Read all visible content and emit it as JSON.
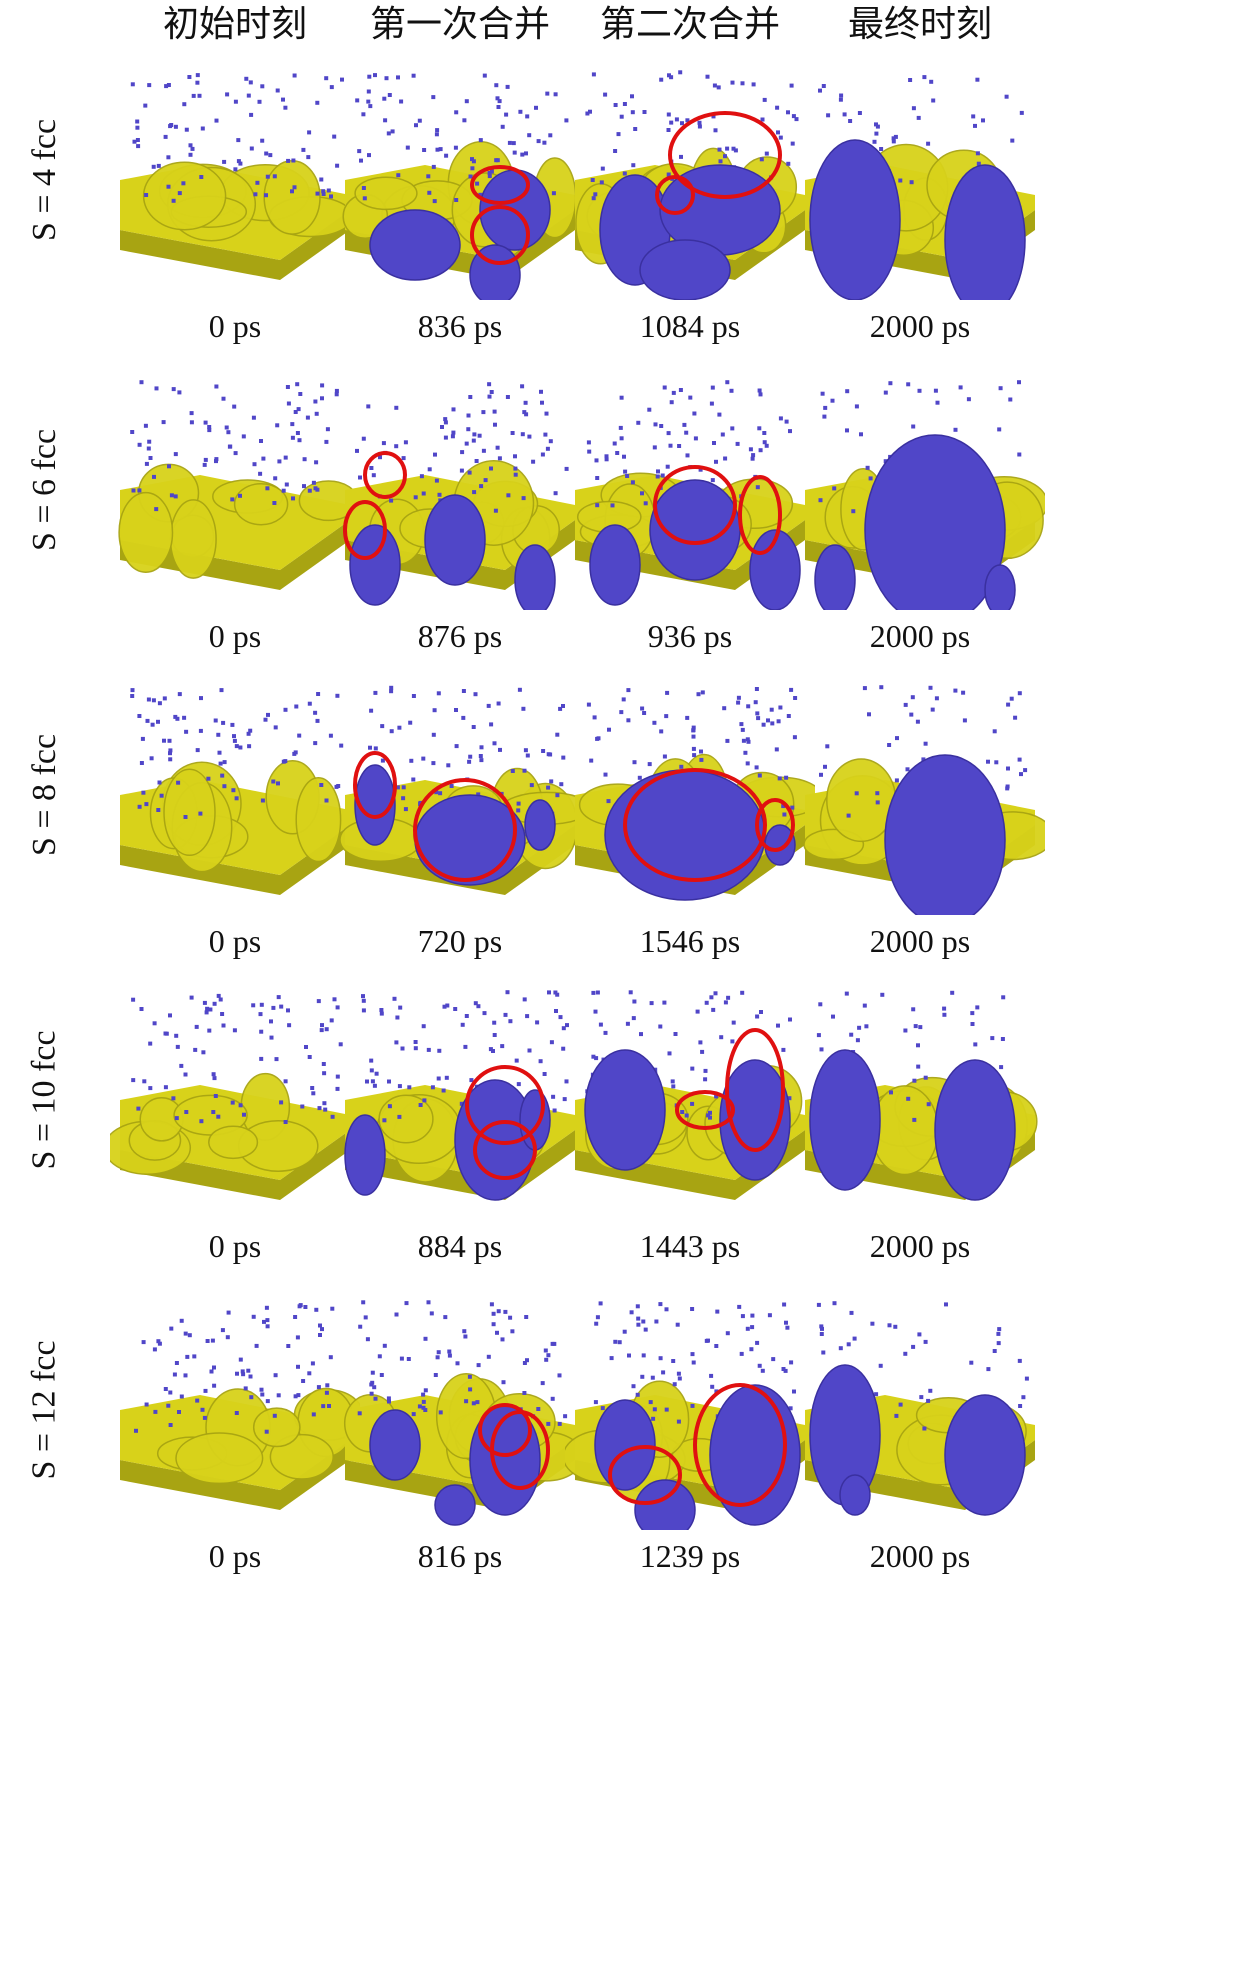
{
  "column_headers": [
    "初始时刻",
    "第一次合并",
    "第二次合并",
    "最终时刻"
  ],
  "rows": [
    {
      "label": "S = 4 fcc",
      "times": [
        "0 ps",
        "836 ps",
        "1084 ps",
        "2000 ps"
      ]
    },
    {
      "label": "S = 6 fcc",
      "times": [
        "0 ps",
        "876 ps",
        "936 ps",
        "2000 ps"
      ]
    },
    {
      "label": "S = 8 fcc",
      "times": [
        "0 ps",
        "720 ps",
        "1546 ps",
        "2000 ps"
      ]
    },
    {
      "label": "S = 10 fcc",
      "times": [
        "0 ps",
        "884 ps",
        "1443 ps",
        "2000 ps"
      ]
    },
    {
      "label": "S = 12 fcc",
      "times": [
        "0 ps",
        "816 ps",
        "1239 ps",
        "2000 ps"
      ]
    }
  ],
  "colors": {
    "substrate": "#d8d21a",
    "substrate_dark": "#a8a412",
    "cluster": "#5046c8",
    "marker": "#e01010"
  }
}
